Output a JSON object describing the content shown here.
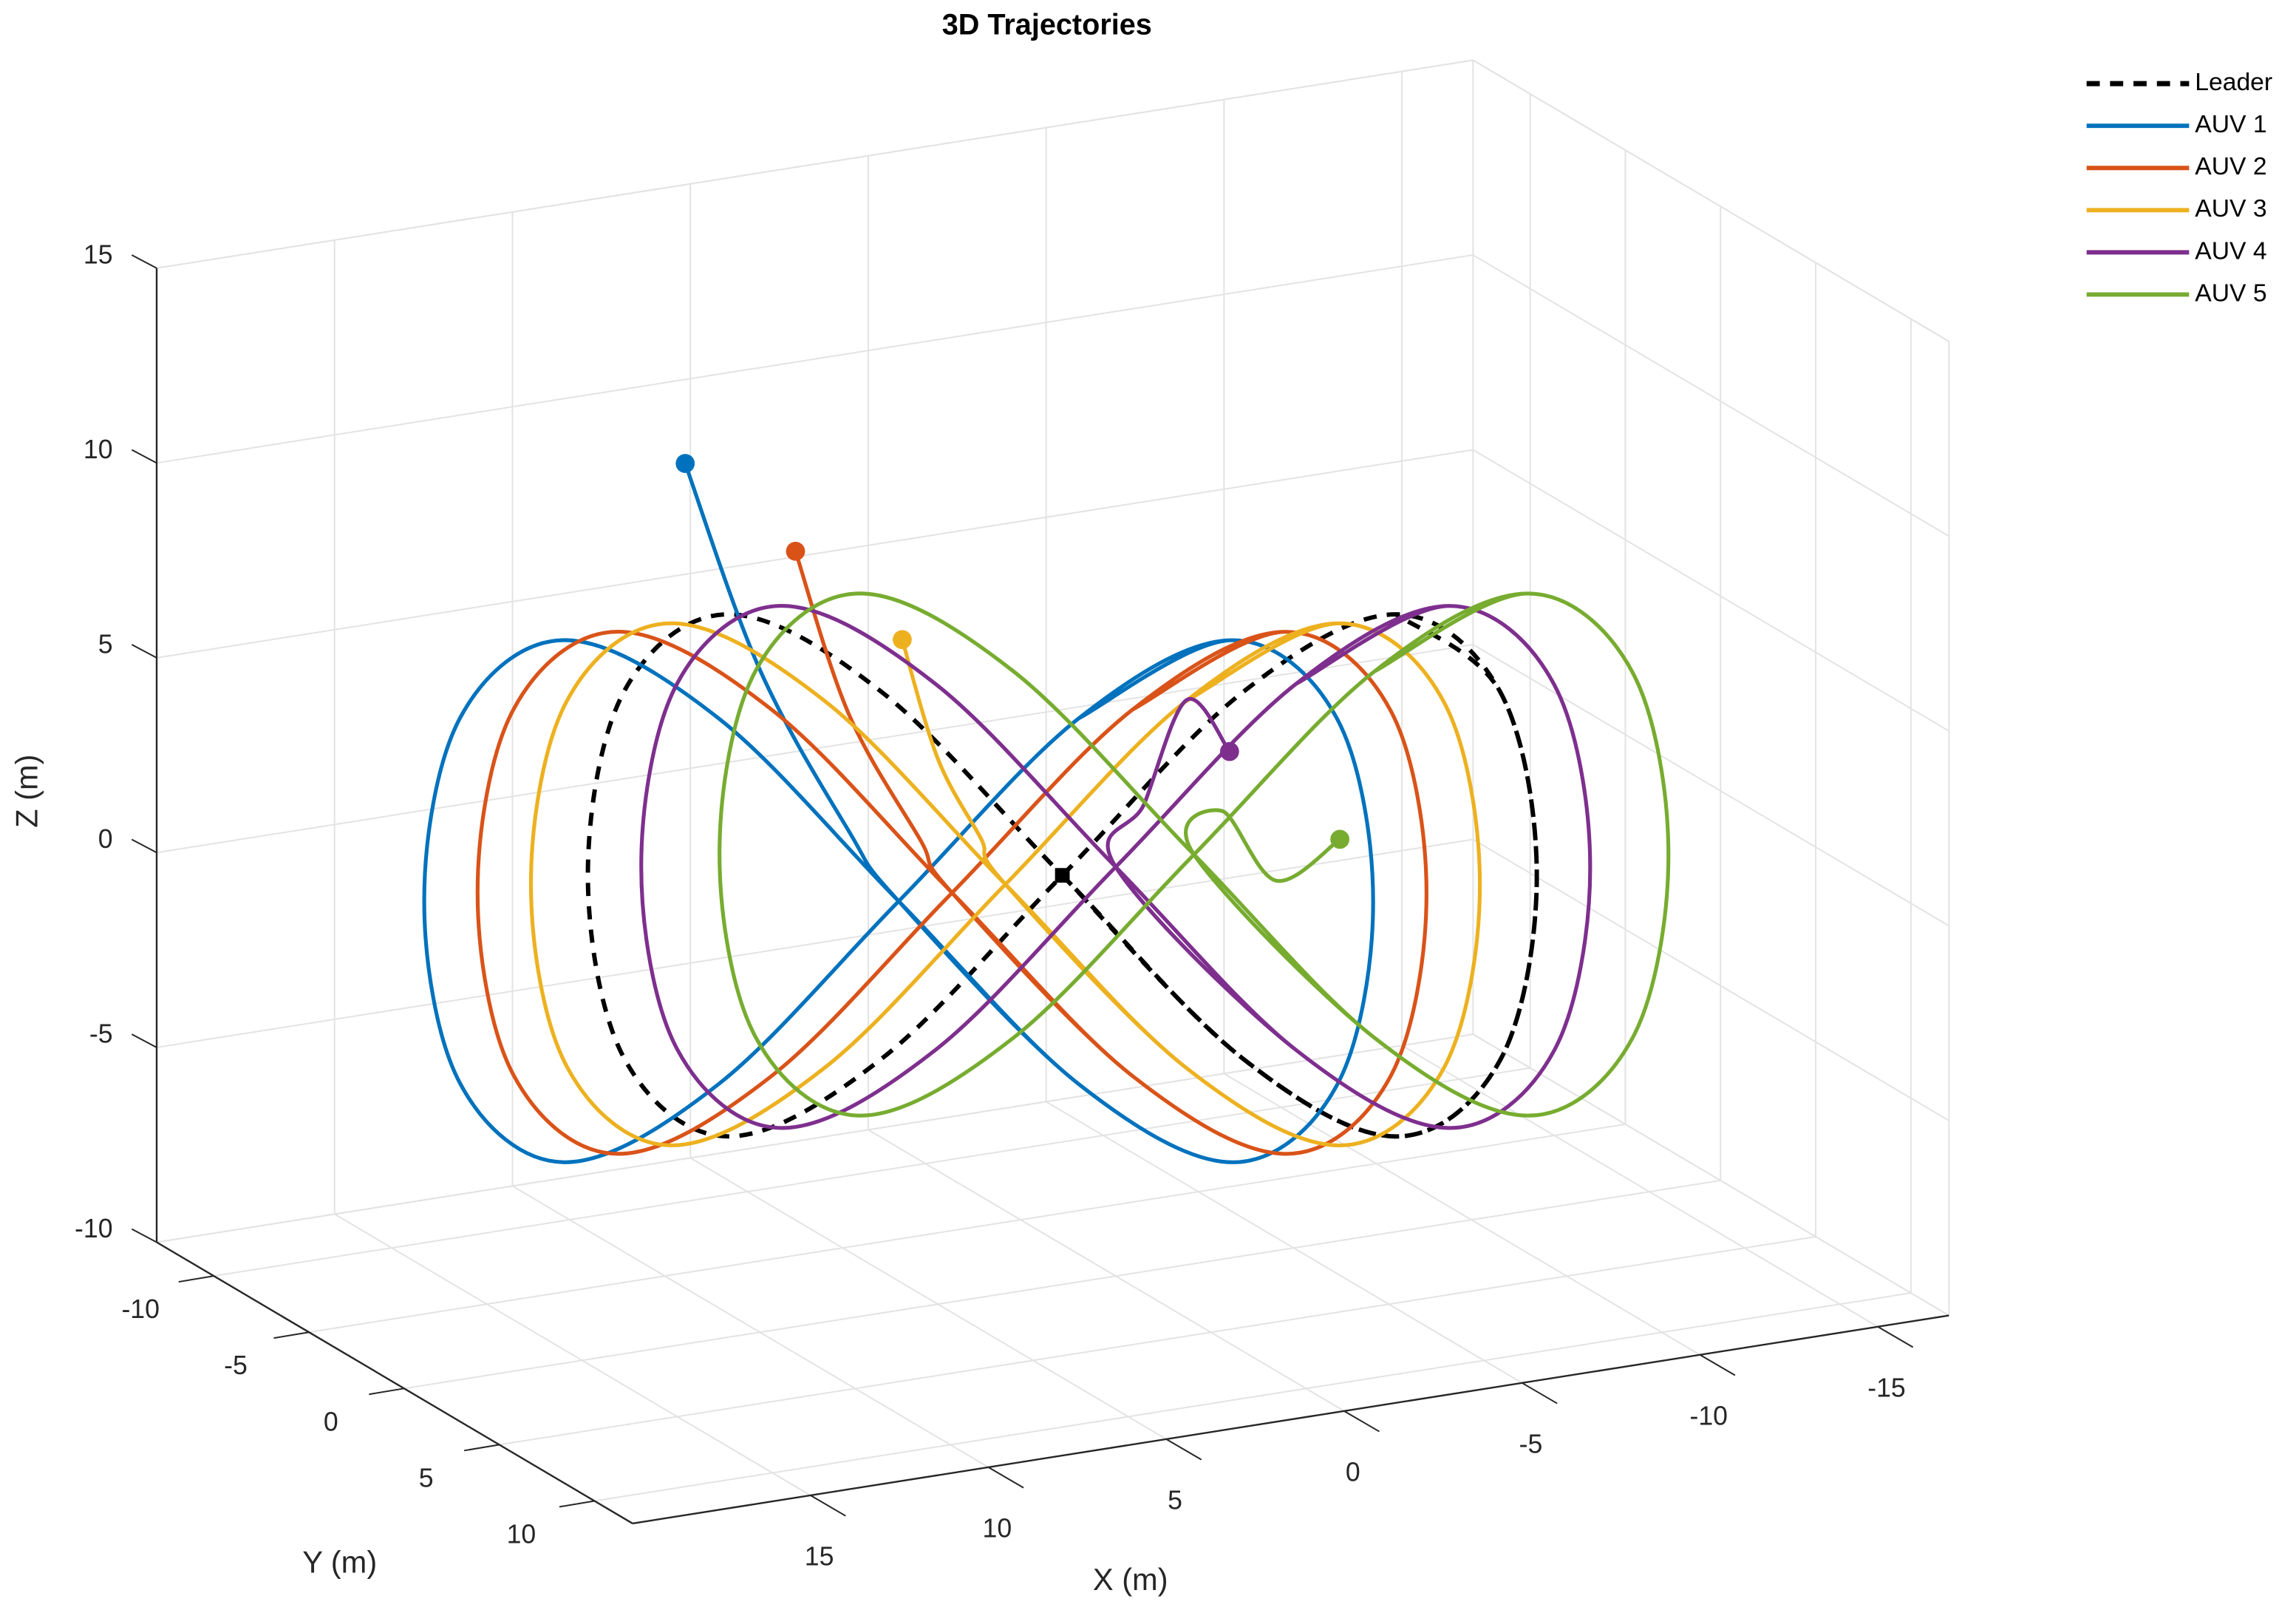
{
  "chart_data": {
    "type": "line3d",
    "title": "3D Trajectories",
    "xlabel": "X (m)",
    "ylabel": "Y (m)",
    "zlabel": "Z (m)",
    "xlim": [
      -17,
      20
    ],
    "ylim": [
      -13,
      12
    ],
    "zlim": [
      -10,
      15
    ],
    "xticks": [
      -15,
      -10,
      -5,
      0,
      5,
      10,
      15
    ],
    "yticks": [
      -10,
      -5,
      0,
      5,
      10
    ],
    "zticks": [
      -10,
      -5,
      0,
      5,
      10,
      15
    ],
    "grid": true,
    "legend": "northeast-outside",
    "series": [
      {
        "name": "Leader",
        "color": "#000000",
        "linestyle": "dashed",
        "marker": "square",
        "x": [
          1.5,
          -2.5,
          -5.9,
          -8.2,
          -9.0,
          -8.2,
          -5.9,
          -2.5,
          1.5,
          5.5,
          8.9,
          11.2,
          12.0,
          11.2,
          8.9,
          5.5,
          1.5,
          -2.5,
          -5.9,
          -8.2,
          -9.0,
          -8.2,
          -5.9
        ],
        "y": [
          0,
          2.0,
          3.7,
          4.9,
          5.3,
          4.9,
          3.7,
          2.0,
          0,
          -2.0,
          -3.7,
          -4.9,
          -5.3,
          -4.9,
          -3.7,
          -2.0,
          0,
          2.0,
          3.7,
          4.9,
          5.3,
          4.9,
          3.7
        ],
        "z": [
          0.5,
          -4.2,
          -6.2,
          -4.2,
          0.5,
          5.2,
          7.2,
          5.2,
          0.5,
          -4.2,
          -6.2,
          -4.2,
          0.5,
          5.2,
          7.2,
          5.2,
          0.5,
          -4.2,
          -6.2,
          -4.2,
          0.5,
          5.2,
          7.2
        ]
      },
      {
        "name": "AUV 1",
        "color": "#0072BD",
        "linestyle": "solid",
        "marker": "circle",
        "x": [
          12.1,
          10.0,
          7.5,
          6.1,
          2.1,
          -1.3,
          -3.6,
          -4.4,
          -3.6,
          -1.3,
          2.1,
          6.1,
          10.1,
          13.5,
          15.8,
          16.6,
          15.8,
          13.5,
          10.1,
          6.1,
          2.1,
          -1.3,
          -3.6,
          -4.4,
          -3.6,
          -1.3,
          2.1
        ],
        "y": [
          0,
          0,
          0,
          0,
          2.0,
          3.7,
          4.9,
          5.3,
          4.9,
          3.7,
          2.0,
          0,
          -2.0,
          -3.7,
          -4.9,
          -5.3,
          -4.9,
          -3.7,
          -2.0,
          0,
          2.0,
          3.7,
          4.9,
          5.3,
          4.9,
          3.7,
          2.0
        ],
        "z": [
          12.6,
          7.0,
          2.5,
          0.5,
          -4.2,
          -6.2,
          -4.2,
          0.5,
          5.2,
          7.2,
          5.2,
          0.5,
          -4.2,
          -6.2,
          -4.2,
          0.5,
          5.2,
          7.2,
          5.2,
          0.5,
          -4.2,
          -6.2,
          -4.2,
          0.5,
          5.2,
          7.2,
          5.2
        ]
      },
      {
        "name": "AUV 2",
        "color": "#D95319",
        "linestyle": "solid",
        "marker": "circle",
        "x": [
          9.0,
          7.5,
          5.5,
          4.6,
          0.6,
          -2.8,
          -5.1,
          -5.9,
          -5.1,
          -2.8,
          0.6,
          4.6,
          8.6,
          12.0,
          14.3,
          15.1,
          14.3,
          12.0,
          8.6,
          4.6,
          0.6,
          -2.8,
          -5.1,
          -5.9,
          -5.1,
          -2.8,
          0.6
        ],
        "y": [
          0,
          0,
          0,
          0,
          2.0,
          3.7,
          4.9,
          5.3,
          4.9,
          3.7,
          2.0,
          0,
          -2.0,
          -3.7,
          -4.9,
          -5.3,
          -4.9,
          -3.7,
          -2.0,
          0,
          2.0,
          3.7,
          4.9,
          5.3,
          4.9,
          3.7,
          2.0
        ],
        "z": [
          9.9,
          5.5,
          2.0,
          0.5,
          -4.2,
          -6.2,
          -4.2,
          0.5,
          5.2,
          7.2,
          5.2,
          0.5,
          -4.2,
          -6.2,
          -4.2,
          0.5,
          5.2,
          7.2,
          5.2,
          0.5,
          -4.2,
          -6.2,
          -4.2,
          0.5,
          5.2,
          7.2,
          5.2
        ]
      },
      {
        "name": "AUV 3",
        "color": "#EDB120",
        "linestyle": "solid",
        "marker": "circle",
        "x": [
          6.0,
          5.0,
          3.8,
          3.1,
          -0.9,
          -4.3,
          -6.6,
          -7.4,
          -6.6,
          -4.3,
          -0.9,
          3.1,
          7.1,
          10.5,
          12.8,
          13.6,
          12.8,
          10.5,
          7.1,
          3.1,
          -0.9,
          -4.3,
          -6.6,
          -7.4,
          -6.6,
          -4.3,
          -0.9
        ],
        "y": [
          0,
          0,
          0,
          0,
          2.0,
          3.7,
          4.9,
          5.3,
          4.9,
          3.7,
          2.0,
          0,
          -2.0,
          -3.7,
          -4.9,
          -5.3,
          -4.9,
          -3.7,
          -2.0,
          0,
          2.0,
          3.7,
          4.9,
          5.3,
          4.9,
          3.7,
          2.0
        ],
        "z": [
          7.2,
          4.0,
          1.8,
          0.5,
          -4.2,
          -6.2,
          -4.2,
          0.5,
          5.2,
          7.2,
          5.2,
          0.5,
          -4.2,
          -6.2,
          -4.2,
          0.5,
          5.2,
          7.2,
          5.2,
          0.5,
          -4.2,
          -6.2,
          -4.2,
          0.5,
          5.2,
          7.2,
          5.2
        ]
      },
      {
        "name": "AUV 4",
        "color": "#7E2F8E",
        "linestyle": "solid",
        "marker": "circle",
        "x": [
          -3.2,
          -2.0,
          -0.8,
          0,
          -4.0,
          -7.4,
          -9.7,
          -10.5,
          -9.7,
          -7.4,
          -4.0,
          0,
          4.0,
          7.4,
          9.7,
          10.5,
          9.7,
          7.4,
          4.0,
          0,
          -4.0,
          -7.4,
          -9.7,
          -10.5,
          -9.7,
          -7.4,
          -4.0
        ],
        "y": [
          0,
          0,
          0,
          0,
          2.0,
          3.7,
          4.9,
          5.3,
          4.9,
          3.7,
          2.0,
          0,
          -2.0,
          -3.7,
          -4.9,
          -5.3,
          -4.9,
          -3.7,
          -2.0,
          0,
          2.0,
          3.7,
          4.9,
          5.3,
          4.9,
          3.7,
          2.0
        ],
        "z": [
          3.0,
          4.5,
          2.0,
          0.5,
          -4.2,
          -6.2,
          -4.2,
          0.5,
          5.2,
          7.2,
          5.2,
          0.5,
          -4.2,
          -6.2,
          -4.2,
          0.5,
          5.2,
          7.2,
          5.2,
          0.5,
          -4.2,
          -6.2,
          -4.2,
          0.5,
          5.2,
          7.2,
          5.2
        ]
      },
      {
        "name": "AUV 5",
        "color": "#77AC30",
        "linestyle": "solid",
        "marker": "circle",
        "x": [
          -6.3,
          -4.5,
          -3.0,
          -2.2,
          -6.2,
          -9.6,
          -11.9,
          -12.7,
          -11.9,
          -9.6,
          -6.2,
          -2.2,
          1.8,
          5.2,
          7.5,
          8.3,
          7.5,
          5.2,
          1.8,
          -2.2,
          -6.2,
          -9.6,
          -11.9,
          -12.7,
          -11.9,
          -9.6,
          -6.2
        ],
        "y": [
          0,
          0,
          0,
          0,
          2.0,
          3.7,
          4.9,
          5.3,
          4.9,
          3.7,
          2.0,
          0,
          -2.0,
          -3.7,
          -4.9,
          -5.3,
          -4.9,
          -3.7,
          -2.0,
          0,
          2.0,
          3.7,
          4.9,
          5.3,
          4.9,
          3.7,
          2.0
        ],
        "z": [
          0.3,
          -0.5,
          1.5,
          0.5,
          -4.2,
          -6.2,
          -4.2,
          0.5,
          5.2,
          7.2,
          5.2,
          0.5,
          -4.2,
          -6.2,
          -4.2,
          0.5,
          5.2,
          7.2,
          5.2,
          0.5,
          -4.2,
          -6.2,
          -4.2,
          0.5,
          5.2,
          7.2,
          5.2
        ]
      }
    ]
  }
}
